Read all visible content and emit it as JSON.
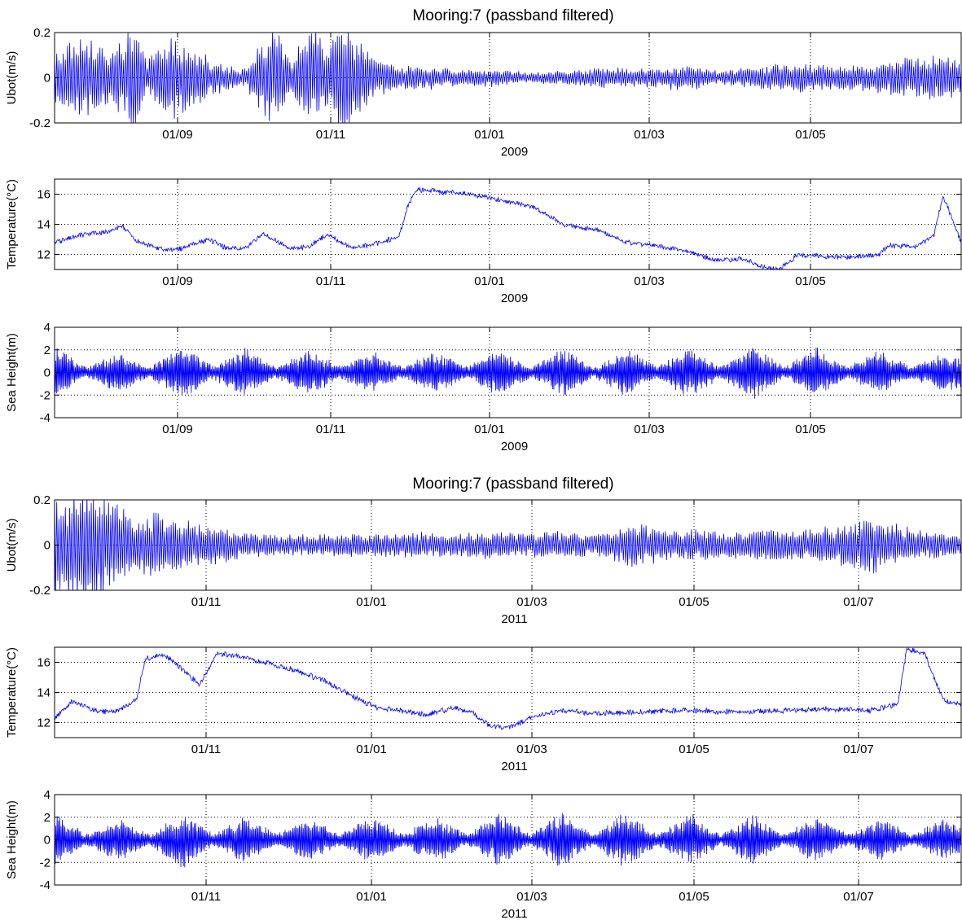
{
  "colors": {
    "series": "#0000ff",
    "axes": "#000000",
    "grid": "#000000",
    "background": "#ffffff"
  },
  "figure_title": "Mooring:7 (passband filtered)",
  "chart_data": [
    {
      "group": 0,
      "type": "line",
      "title": "Mooring:7 (passband filtered)",
      "xlabel": "2009",
      "ylabel": "Ubot(m/s)",
      "x_tick_labels": [
        "01/09",
        "01/11",
        "01/01",
        "01/03",
        "01/05"
      ],
      "ylim": [
        -0.2,
        0.2
      ],
      "y_ticks": [
        -0.2,
        0,
        0.2
      ],
      "y_tick_labels": [
        "-0.2",
        "0",
        "0.2"
      ],
      "grid": true,
      "series": [
        {
          "color": "#0000ff",
          "kind": "oscillation",
          "t": [
            0.0,
            0.035,
            0.06,
            0.09,
            0.1,
            0.13,
            0.15,
            0.19,
            0.21,
            0.24,
            0.26,
            0.28,
            0.3,
            0.32,
            0.35,
            0.38,
            0.41,
            0.45,
            0.48,
            0.52,
            0.56,
            0.6,
            0.66,
            0.7,
            0.73,
            0.77,
            0.8,
            0.83,
            0.87,
            0.91,
            0.95,
            0.98,
            1.0
          ],
          "envelope": [
            0.12,
            0.2,
            0.11,
            0.23,
            0.08,
            0.18,
            0.12,
            0.06,
            0.04,
            0.22,
            0.09,
            0.25,
            0.15,
            0.24,
            0.1,
            0.05,
            0.05,
            0.035,
            0.04,
            0.025,
            0.03,
            0.045,
            0.04,
            0.06,
            0.03,
            0.05,
            0.06,
            0.065,
            0.05,
            0.07,
            0.1,
            0.09,
            0.08
          ],
          "cycles": 420
        }
      ]
    },
    {
      "group": 0,
      "type": "line",
      "title": "",
      "xlabel": "2009",
      "ylabel": "Temperature(°C)",
      "x_tick_labels": [
        "01/09",
        "01/11",
        "01/01",
        "01/03",
        "01/05"
      ],
      "ylim": [
        11,
        17
      ],
      "y_ticks": [
        12,
        14,
        16
      ],
      "y_tick_labels": [
        "12",
        "14",
        "16"
      ],
      "grid": true,
      "series": [
        {
          "color": "#0000ff",
          "kind": "line",
          "x": [
            0.0,
            0.03,
            0.06,
            0.075,
            0.09,
            0.12,
            0.14,
            0.17,
            0.19,
            0.21,
            0.23,
            0.26,
            0.28,
            0.3,
            0.33,
            0.36,
            0.38,
            0.39,
            0.4,
            0.42,
            0.46,
            0.5,
            0.53,
            0.56,
            0.6,
            0.63,
            0.66,
            0.7,
            0.73,
            0.76,
            0.78,
            0.8,
            0.82,
            0.84,
            0.88,
            0.91,
            0.92,
            0.95,
            0.97,
            0.98,
            1.0
          ],
          "y": [
            12.8,
            13.3,
            13.5,
            13.9,
            12.9,
            12.3,
            12.4,
            13.0,
            12.4,
            12.4,
            13.4,
            12.4,
            12.5,
            13.3,
            12.4,
            12.8,
            13.2,
            15.3,
            16.3,
            16.2,
            16.0,
            15.5,
            15.1,
            14.0,
            13.6,
            12.8,
            12.6,
            12.2,
            11.6,
            11.7,
            11.2,
            11.0,
            12.0,
            11.9,
            11.8,
            12.0,
            12.6,
            12.5,
            13.3,
            15.9,
            12.8
          ],
          "noise": 0.18
        }
      ]
    },
    {
      "group": 0,
      "type": "line",
      "title": "",
      "xlabel": "2009",
      "ylabel": "Sea Height(m)",
      "x_tick_labels": [
        "01/09",
        "01/11",
        "01/01",
        "01/03",
        "01/05"
      ],
      "ylim": [
        -4,
        4
      ],
      "y_ticks": [
        -4,
        -2,
        0,
        2,
        4
      ],
      "y_tick_labels": [
        "-4",
        "-2",
        "0",
        "2",
        "4"
      ],
      "grid": true,
      "series": [
        {
          "color": "#0000ff",
          "kind": "oscillation",
          "t": [
            0.0,
            0.035,
            0.07,
            0.105,
            0.14,
            0.175,
            0.21,
            0.245,
            0.28,
            0.315,
            0.35,
            0.385,
            0.42,
            0.455,
            0.49,
            0.525,
            0.56,
            0.595,
            0.63,
            0.665,
            0.7,
            0.735,
            0.77,
            0.805,
            0.84,
            0.875,
            0.91,
            0.945,
            0.98,
            1.0
          ],
          "envelope": [
            2.3,
            0.5,
            1.7,
            0.5,
            2.3,
            0.6,
            2.2,
            0.5,
            1.9,
            0.6,
            1.8,
            0.5,
            1.8,
            0.5,
            2.0,
            0.5,
            2.1,
            0.4,
            2.1,
            0.5,
            2.3,
            0.5,
            2.4,
            0.5,
            2.1,
            0.5,
            1.9,
            0.5,
            1.7,
            1.3
          ],
          "cycles": 700
        }
      ]
    },
    {
      "group": 1,
      "type": "line",
      "title": "Mooring:7 (passband filtered)",
      "xlabel": "2011",
      "ylabel": "Ubot(m/s)",
      "x_tick_labels": [
        "01/11",
        "01/01",
        "01/03",
        "01/05",
        "01/07"
      ],
      "ylim": [
        -0.2,
        0.2
      ],
      "y_ticks": [
        -0.2,
        0,
        0.2
      ],
      "y_tick_labels": [
        "-0.2",
        "0",
        "0.2"
      ],
      "grid": true,
      "series": [
        {
          "color": "#0000ff",
          "kind": "oscillation",
          "t": [
            0.0,
            0.03,
            0.06,
            0.09,
            0.12,
            0.15,
            0.18,
            0.2,
            0.23,
            0.27,
            0.32,
            0.36,
            0.4,
            0.44,
            0.48,
            0.52,
            0.56,
            0.6,
            0.64,
            0.68,
            0.71,
            0.74,
            0.78,
            0.82,
            0.86,
            0.88,
            0.9,
            0.93,
            0.96,
            1.0
          ],
          "envelope": [
            0.2,
            0.25,
            0.2,
            0.12,
            0.14,
            0.1,
            0.08,
            0.06,
            0.05,
            0.045,
            0.05,
            0.05,
            0.055,
            0.05,
            0.06,
            0.05,
            0.06,
            0.05,
            0.1,
            0.06,
            0.07,
            0.06,
            0.07,
            0.07,
            0.08,
            0.1,
            0.12,
            0.09,
            0.06,
            0.04
          ],
          "cycles": 420
        }
      ]
    },
    {
      "group": 1,
      "type": "line",
      "title": "",
      "xlabel": "2011",
      "ylabel": "Temperature(°C)",
      "x_tick_labels": [
        "01/11",
        "01/01",
        "01/03",
        "01/05",
        "01/07"
      ],
      "ylim": [
        11,
        17
      ],
      "y_ticks": [
        12,
        14,
        16
      ],
      "y_tick_labels": [
        "12",
        "14",
        "16"
      ],
      "grid": true,
      "series": [
        {
          "color": "#0000ff",
          "kind": "line",
          "x": [
            0.0,
            0.02,
            0.05,
            0.07,
            0.09,
            0.1,
            0.12,
            0.14,
            0.16,
            0.18,
            0.2,
            0.23,
            0.27,
            0.3,
            0.33,
            0.36,
            0.38,
            0.41,
            0.44,
            0.46,
            0.48,
            0.5,
            0.53,
            0.56,
            0.6,
            0.65,
            0.7,
            0.75,
            0.8,
            0.85,
            0.9,
            0.93,
            0.94,
            0.96,
            0.98,
            1.0
          ],
          "y": [
            12.3,
            13.4,
            12.7,
            12.8,
            13.5,
            16.2,
            16.5,
            15.6,
            14.5,
            16.6,
            16.4,
            16.0,
            15.4,
            14.7,
            13.7,
            12.9,
            12.8,
            12.5,
            13.0,
            12.7,
            11.8,
            11.6,
            12.4,
            12.8,
            12.6,
            12.7,
            12.8,
            12.7,
            12.8,
            12.9,
            12.8,
            13.2,
            16.9,
            16.5,
            13.5,
            13.2
          ],
          "noise": 0.2
        }
      ]
    },
    {
      "group": 1,
      "type": "line",
      "title": "",
      "xlabel": "2011",
      "ylabel": "Sea Height(m)",
      "x_tick_labels": [
        "01/11",
        "01/01",
        "01/03",
        "01/05",
        "01/07"
      ],
      "ylim": [
        -4,
        4
      ],
      "y_ticks": [
        -4,
        -2,
        0,
        2,
        4
      ],
      "y_tick_labels": [
        "-4",
        "-2",
        "0",
        "2",
        "4"
      ],
      "grid": true,
      "series": [
        {
          "color": "#0000ff",
          "kind": "oscillation",
          "t": [
            0.0,
            0.035,
            0.07,
            0.105,
            0.14,
            0.175,
            0.21,
            0.245,
            0.28,
            0.315,
            0.35,
            0.385,
            0.42,
            0.455,
            0.49,
            0.525,
            0.56,
            0.595,
            0.63,
            0.665,
            0.7,
            0.735,
            0.77,
            0.805,
            0.84,
            0.875,
            0.91,
            0.945,
            0.98,
            1.0
          ],
          "envelope": [
            2.3,
            0.5,
            1.8,
            0.5,
            2.5,
            0.5,
            2.1,
            0.5,
            1.9,
            0.5,
            2.0,
            0.5,
            2.1,
            0.5,
            2.3,
            0.5,
            2.4,
            0.5,
            2.5,
            0.5,
            2.3,
            0.5,
            2.2,
            0.5,
            2.0,
            0.5,
            1.9,
            0.5,
            1.8,
            1.2
          ],
          "cycles": 700
        }
      ]
    }
  ]
}
